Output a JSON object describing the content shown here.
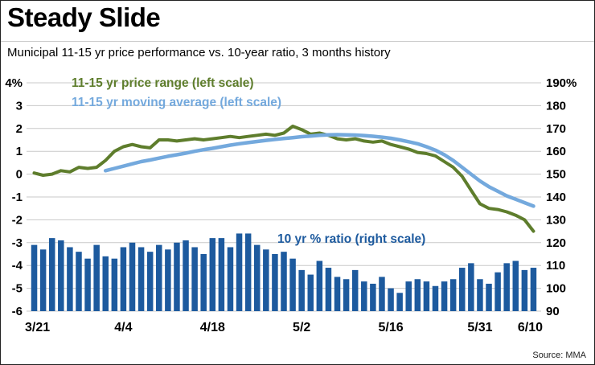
{
  "header": {
    "title": "Steady Slide",
    "subtitle": "Municipal 11-15 yr price performance vs. 10-year ratio, 3 months history"
  },
  "source": "Source: MMA",
  "chart_data": {
    "type": "combo",
    "title": "Steady Slide",
    "subtitle": "Municipal 11-15 yr price performance vs. 10-year ratio, 3 months history",
    "grid": true,
    "grid_color": "#c8c8c8",
    "num_days": 57,
    "left_axis": {
      "ticks": [
        "4%",
        "3",
        "2",
        "1",
        "0",
        "-1",
        "-2",
        "-3",
        "-4",
        "-5",
        "-6"
      ],
      "values": [
        4,
        3,
        2,
        1,
        0,
        -1,
        -2,
        -3,
        -4,
        -5,
        -6
      ],
      "range": [
        -6,
        4
      ]
    },
    "right_axis": {
      "ticks": [
        "190%",
        "180",
        "170",
        "160",
        "150",
        "140",
        "130",
        "120",
        "110",
        "100",
        "90"
      ],
      "values": [
        190,
        180,
        170,
        160,
        150,
        140,
        130,
        120,
        110,
        100,
        90
      ],
      "range": [
        90,
        190
      ]
    },
    "x_ticks": [
      {
        "label": "3/21",
        "day": 0
      },
      {
        "label": "4/4",
        "day": 10
      },
      {
        "label": "4/18",
        "day": 20
      },
      {
        "label": "5/2",
        "day": 30
      },
      {
        "label": "5/16",
        "day": 40
      },
      {
        "label": "5/31",
        "day": 50
      },
      {
        "label": "6/10",
        "day": 56
      }
    ],
    "series": [
      {
        "name": "11-15 yr price range (left scale)",
        "type": "line",
        "axis": "left",
        "color": "#5e7d2c",
        "start_day": 0,
        "values": [
          0.05,
          -0.05,
          0.0,
          0.15,
          0.1,
          0.3,
          0.25,
          0.3,
          0.6,
          1.0,
          1.2,
          1.3,
          1.2,
          1.15,
          1.5,
          1.5,
          1.45,
          1.5,
          1.55,
          1.5,
          1.55,
          1.6,
          1.65,
          1.6,
          1.65,
          1.7,
          1.75,
          1.7,
          1.8,
          2.1,
          1.95,
          1.75,
          1.8,
          1.7,
          1.55,
          1.5,
          1.55,
          1.45,
          1.4,
          1.45,
          1.3,
          1.2,
          1.1,
          0.95,
          0.9,
          0.8,
          0.55,
          0.3,
          -0.1,
          -0.7,
          -1.3,
          -1.5,
          -1.55,
          -1.65,
          -1.8,
          -2.0,
          -2.5
        ]
      },
      {
        "name": "11-15 yr moving average (left scale)",
        "type": "line",
        "axis": "left",
        "color": "#74a9dd",
        "start_day": 8,
        "values": [
          0.15,
          0.25,
          0.35,
          0.45,
          0.55,
          0.62,
          0.7,
          0.78,
          0.85,
          0.92,
          1.0,
          1.07,
          1.13,
          1.2,
          1.27,
          1.33,
          1.38,
          1.43,
          1.48,
          1.52,
          1.56,
          1.6,
          1.64,
          1.67,
          1.7,
          1.72,
          1.73,
          1.72,
          1.71,
          1.69,
          1.66,
          1.62,
          1.57,
          1.5,
          1.42,
          1.33,
          1.2,
          1.05,
          0.85,
          0.6,
          0.3,
          0.0,
          -0.3,
          -0.55,
          -0.75,
          -0.95,
          -1.1,
          -1.25,
          -1.4
        ]
      },
      {
        "name": "10 yr % ratio (right scale)",
        "type": "bar",
        "axis": "right",
        "color": "#1d5a9e",
        "start_day": 0,
        "values": [
          119,
          117,
          122,
          121,
          118,
          116,
          113,
          119,
          114,
          113,
          118,
          120,
          118,
          116,
          119,
          117,
          120,
          121,
          118,
          115,
          122,
          122,
          118,
          124,
          124,
          119,
          117,
          115,
          116,
          113,
          108,
          106,
          112,
          109,
          105,
          104,
          108,
          103,
          102,
          105,
          100,
          98,
          103,
          104,
          103,
          101,
          103,
          104,
          109,
          111,
          104,
          102,
          107,
          111,
          112,
          108,
          109
        ]
      }
    ]
  }
}
